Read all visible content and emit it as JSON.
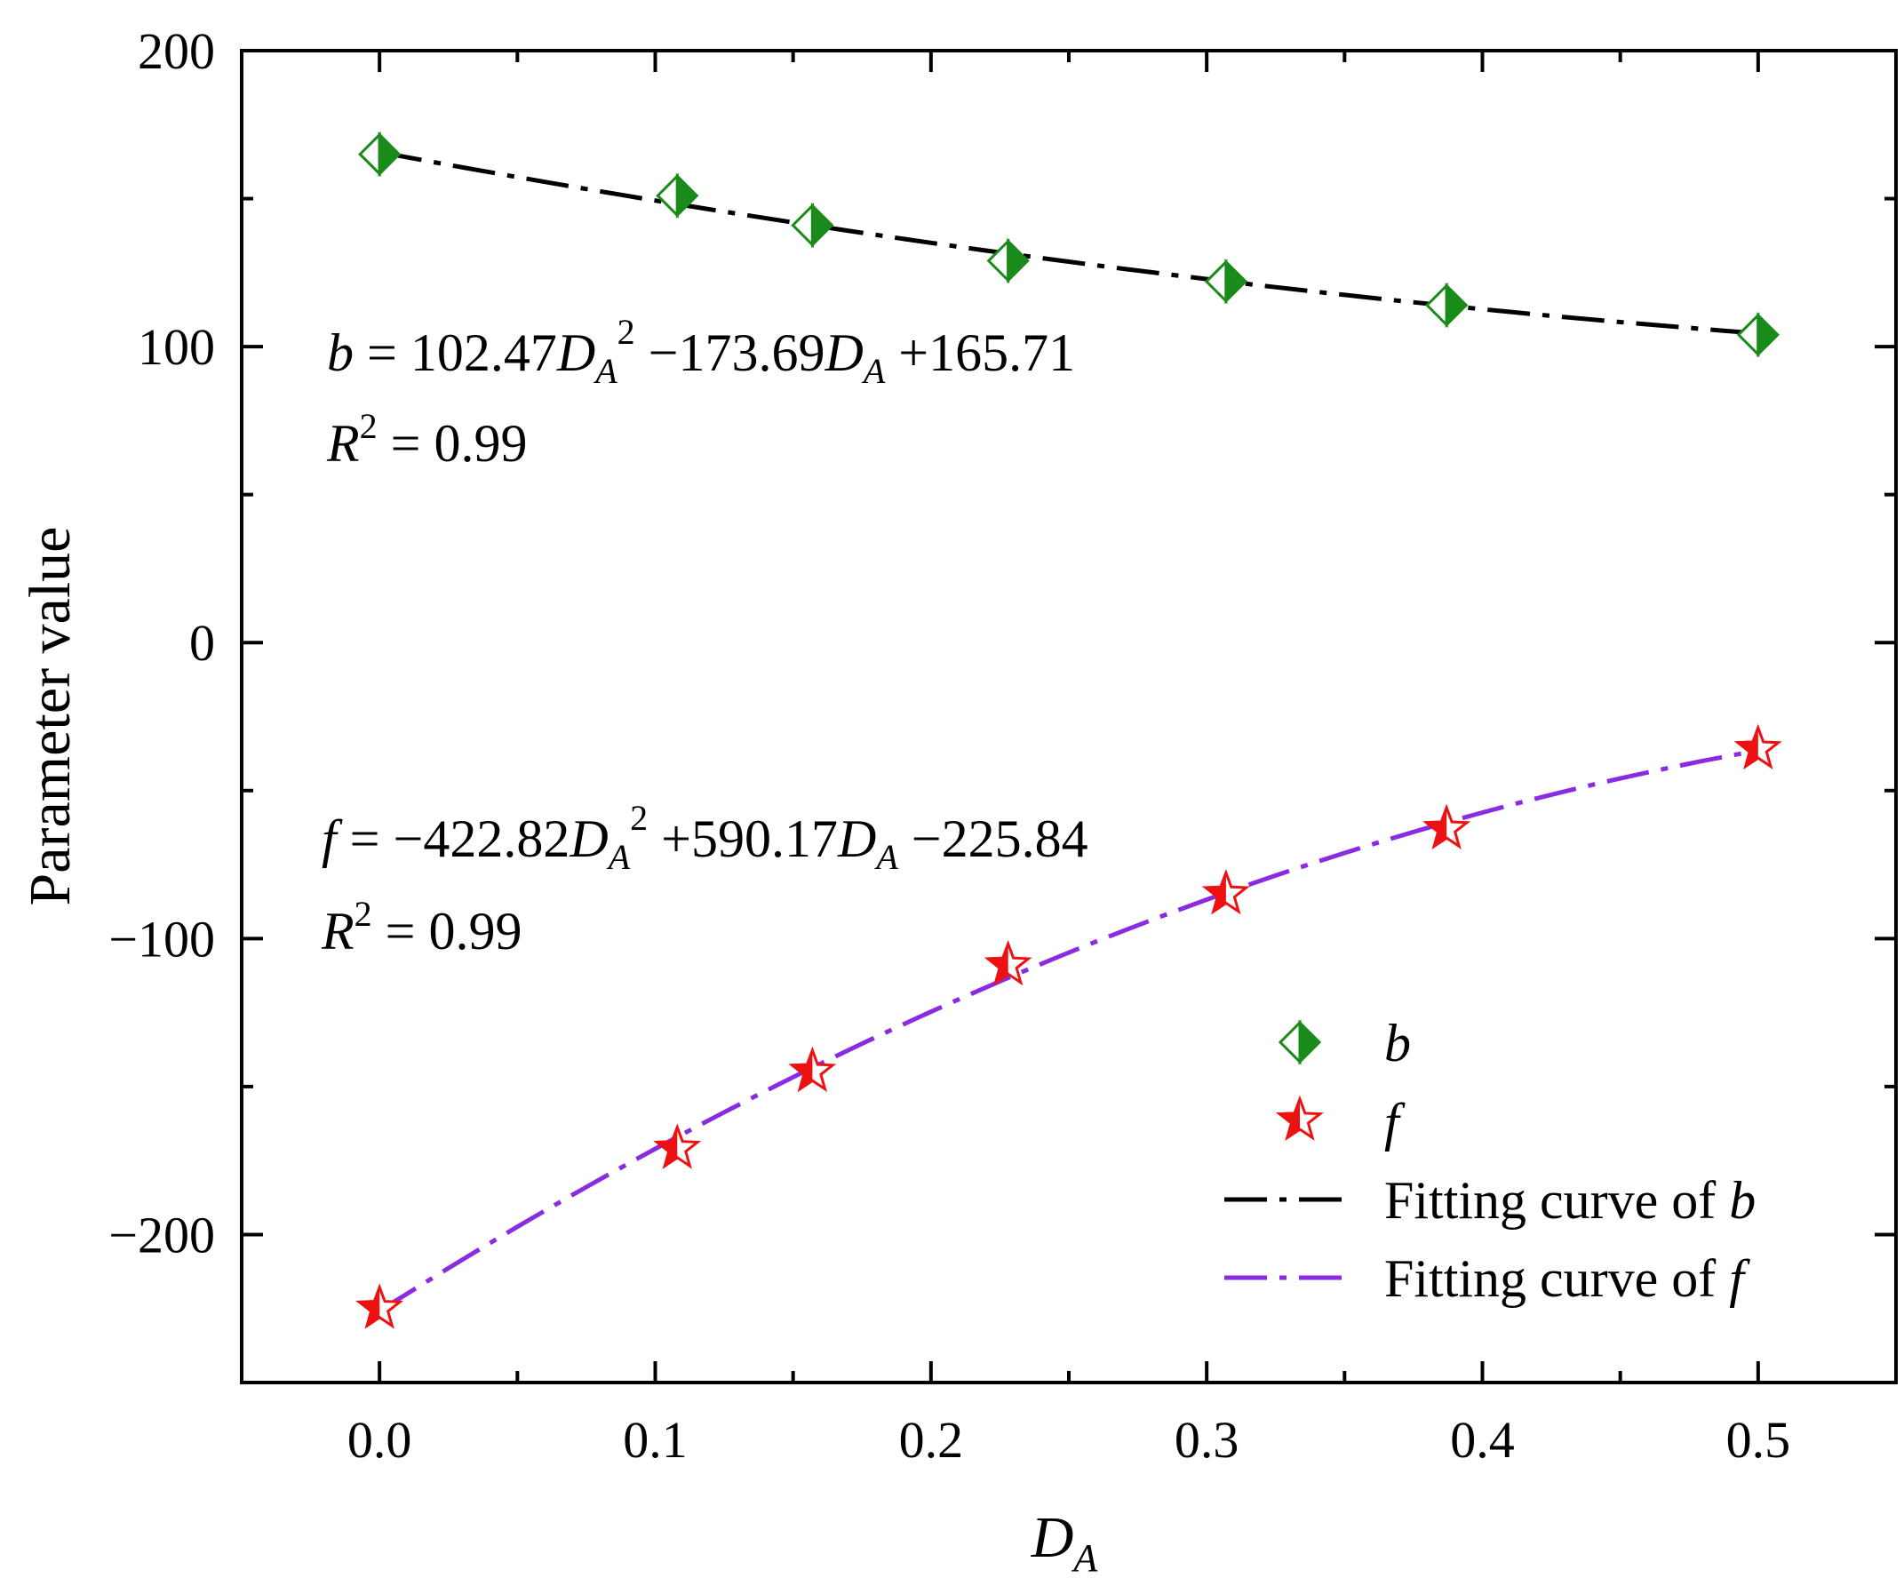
{
  "chart_data": {
    "type": "scatter",
    "title": "",
    "xlabel": "D",
    "xlabel_subscript": "A",
    "ylabel": "Parameter value",
    "xlim": [
      -0.05,
      0.55
    ],
    "ylim": [
      -250,
      200
    ],
    "x_ticks": [
      0.0,
      0.1,
      0.2,
      0.3,
      0.4,
      0.5
    ],
    "x_tick_labels": [
      "0.0",
      "0.1",
      "0.2",
      "0.3",
      "0.4",
      "0.5"
    ],
    "y_ticks": [
      200,
      100,
      0,
      -100,
      -200
    ],
    "y_tick_labels": [
      "200",
      "100",
      "0",
      "−100",
      "−200"
    ],
    "grid": false,
    "legend_position": "bottom-right",
    "series": [
      {
        "name": "b",
        "kind": "points",
        "marker": "half-filled-diamond",
        "color": "#1a8a1a",
        "x": [
          0.0,
          0.108,
          0.157,
          0.228,
          0.307,
          0.387,
          0.5
        ],
        "y": [
          165,
          151,
          141,
          129,
          122,
          114,
          104
        ]
      },
      {
        "name": "f",
        "kind": "points",
        "marker": "half-filled-star",
        "color": "#ee1111",
        "x": [
          0.0,
          0.108,
          0.157,
          0.228,
          0.307,
          0.387,
          0.5
        ],
        "y": [
          -225,
          -171,
          -145,
          -109,
          -85,
          -63,
          -36
        ]
      },
      {
        "name": "Fitting curve of b",
        "kind": "fit",
        "color": "#000000",
        "coefficients": [
          102.47,
          -173.69,
          165.71
        ],
        "x_range": [
          0.0,
          0.5
        ]
      },
      {
        "name": "Fitting curve of f",
        "kind": "fit",
        "color": "#8a2be2",
        "coefficients": [
          -422.82,
          590.17,
          -225.84
        ],
        "x_range": [
          0.0,
          0.5
        ]
      }
    ],
    "legend": {
      "items": [
        {
          "symbol": "b"
        },
        {
          "symbol": "f"
        },
        {
          "text": "Fitting curve of ",
          "symbol": "b"
        },
        {
          "text": "Fitting curve of ",
          "symbol": "f"
        }
      ]
    },
    "annotations": {
      "eq_b": {
        "lhs": "b",
        "eq1": " = 102.47",
        "var1": "D",
        "sub1": "A",
        "sup1": "2",
        "eq2": " −173.69",
        "var2": "D",
        "sub2": "A",
        "eq3": " +165.71",
        "r2_var": "R",
        "r2_sup": "2",
        "r2_val": " = 0.99"
      },
      "eq_f": {
        "lhs": "f",
        "eq1": " = −422.82",
        "var1": "D",
        "sub1": "A",
        "sup1": "2",
        "eq2": " +590.17",
        "var2": "D",
        "sub2": "A",
        "eq3": " −225.84",
        "r2_var": "R",
        "r2_sup": "2",
        "r2_val": " = 0.99"
      }
    }
  }
}
